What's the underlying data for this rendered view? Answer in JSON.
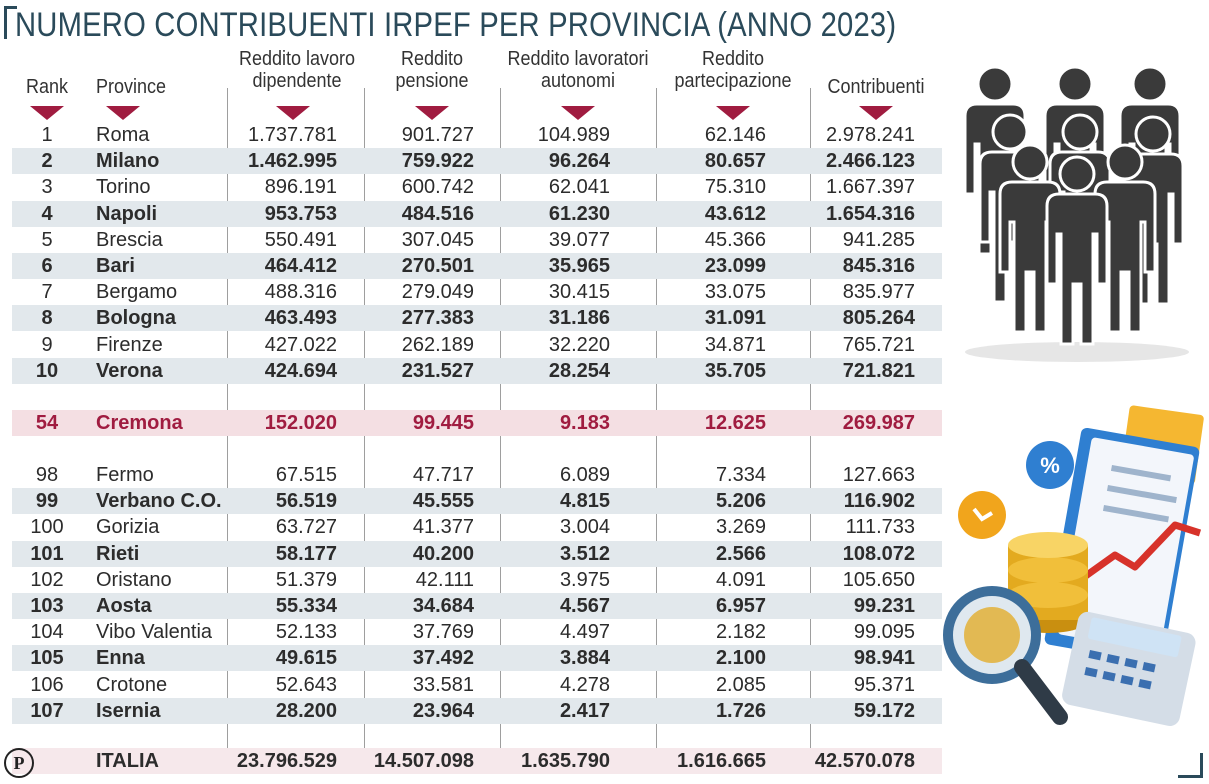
{
  "title": "NUMERO CONTRIBUENTI IRPEF PER PROVINCIA (ANNO 2023)",
  "chart_data": {
    "type": "table",
    "columns": [
      "Rank",
      "Province",
      "Reddito lavoro dipendente",
      "Reddito pensione",
      "Reddito lavoratori autonomi",
      "Reddito partecipazione",
      "Contribuenti"
    ],
    "rows": [
      {
        "rank": "1",
        "province": "Roma",
        "lavoro": "1.737.781",
        "pensione": "901.727",
        "autonomi": "104.989",
        "partecipazione": "62.146",
        "contribuenti": "2.978.241"
      },
      {
        "rank": "2",
        "province": "Milano",
        "lavoro": "1.462.995",
        "pensione": "759.922",
        "autonomi": "96.264",
        "partecipazione": "80.657",
        "contribuenti": "2.466.123"
      },
      {
        "rank": "3",
        "province": "Torino",
        "lavoro": "896.191",
        "pensione": "600.742",
        "autonomi": "62.041",
        "partecipazione": "75.310",
        "contribuenti": "1.667.397"
      },
      {
        "rank": "4",
        "province": "Napoli",
        "lavoro": "953.753",
        "pensione": "484.516",
        "autonomi": "61.230",
        "partecipazione": "43.612",
        "contribuenti": "1.654.316"
      },
      {
        "rank": "5",
        "province": "Brescia",
        "lavoro": "550.491",
        "pensione": "307.045",
        "autonomi": "39.077",
        "partecipazione": "45.366",
        "contribuenti": "941.285"
      },
      {
        "rank": "6",
        "province": "Bari",
        "lavoro": "464.412",
        "pensione": "270.501",
        "autonomi": "35.965",
        "partecipazione": "23.099",
        "contribuenti": "845.316"
      },
      {
        "rank": "7",
        "province": "Bergamo",
        "lavoro": "488.316",
        "pensione": "279.049",
        "autonomi": "30.415",
        "partecipazione": "33.075",
        "contribuenti": "835.977"
      },
      {
        "rank": "8",
        "province": "Bologna",
        "lavoro": "463.493",
        "pensione": "277.383",
        "autonomi": "31.186",
        "partecipazione": "31.091",
        "contribuenti": "805.264"
      },
      {
        "rank": "9",
        "province": "Firenze",
        "lavoro": "427.022",
        "pensione": "262.189",
        "autonomi": "32.220",
        "partecipazione": "34.871",
        "contribuenti": "765.721"
      },
      {
        "rank": "10",
        "province": "Verona",
        "lavoro": "424.694",
        "pensione": "231.527",
        "autonomi": "28.254",
        "partecipazione": "35.705",
        "contribuenti": "721.821"
      },
      {
        "rank": "54",
        "province": "Cremona",
        "lavoro": "152.020",
        "pensione": "99.445",
        "autonomi": "9.183",
        "partecipazione": "12.625",
        "contribuenti": "269.987",
        "highlight": true
      },
      {
        "rank": "98",
        "province": "Fermo",
        "lavoro": "67.515",
        "pensione": "47.717",
        "autonomi": "6.089",
        "partecipazione": "7.334",
        "contribuenti": "127.663"
      },
      {
        "rank": "99",
        "province": "Verbano C.O.",
        "lavoro": "56.519",
        "pensione": "45.555",
        "autonomi": "4.815",
        "partecipazione": "5.206",
        "contribuenti": "116.902"
      },
      {
        "rank": "100",
        "province": "Gorizia",
        "lavoro": "63.727",
        "pensione": "41.377",
        "autonomi": "3.004",
        "partecipazione": "3.269",
        "contribuenti": "111.733"
      },
      {
        "rank": "101",
        "province": "Rieti",
        "lavoro": "58.177",
        "pensione": "40.200",
        "autonomi": "3.512",
        "partecipazione": "2.566",
        "contribuenti": "108.072"
      },
      {
        "rank": "102",
        "province": "Oristano",
        "lavoro": "51.379",
        "pensione": "42.111",
        "autonomi": "3.975",
        "partecipazione": "4.091",
        "contribuenti": "105.650"
      },
      {
        "rank": "103",
        "province": "Aosta",
        "lavoro": "55.334",
        "pensione": "34.684",
        "autonomi": "4.567",
        "partecipazione": "6.957",
        "contribuenti": "99.231"
      },
      {
        "rank": "104",
        "province": "Vibo Valentia",
        "lavoro": "52.133",
        "pensione": "37.769",
        "autonomi": "4.497",
        "partecipazione": "2.182",
        "contribuenti": "99.095"
      },
      {
        "rank": "105",
        "province": "Enna",
        "lavoro": "49.615",
        "pensione": "37.492",
        "autonomi": "3.884",
        "partecipazione": "2.100",
        "contribuenti": "98.941"
      },
      {
        "rank": "106",
        "province": "Crotone",
        "lavoro": "52.643",
        "pensione": "33.581",
        "autonomi": "4.278",
        "partecipazione": "2.085",
        "contribuenti": "95.371"
      },
      {
        "rank": "107",
        "province": "Isernia",
        "lavoro": "28.200",
        "pensione": "23.964",
        "autonomi": "2.417",
        "partecipazione": "1.726",
        "contribuenti": "59.172"
      }
    ],
    "total": {
      "province": "ITALIA",
      "lavoro": "23.796.529",
      "pensione": "14.507.098",
      "autonomi": "1.635.790",
      "partecipazione": "1.616.665",
      "contribuenti": "42.570.078"
    }
  },
  "headers": {
    "rank": "Rank",
    "province": "Province",
    "lavoro_1": "Reddito lavoro",
    "lavoro_2": "dipendente",
    "pensione_1": "Reddito",
    "pensione_2": "pensione",
    "autonomi_1": "Reddito lavoratori",
    "autonomi_2": "autonomi",
    "partecipazione_1": "Reddito",
    "partecipazione_2": "partecipazione",
    "contribuenti": "Contribuenti"
  },
  "logo_letter": "P",
  "colors": {
    "title": "#2a4a5a",
    "accent": "#a01c40",
    "row_shade": "#e2e8ec",
    "highlight_row": "#f4dfe3"
  },
  "icons": [
    "people-group-icon",
    "finance-illustration-icon"
  ]
}
